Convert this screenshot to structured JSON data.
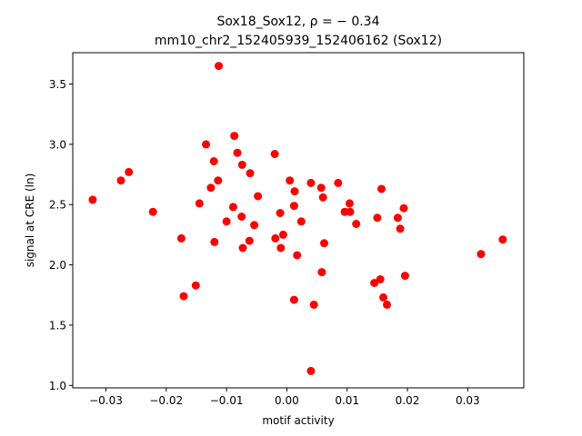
{
  "chart_data": {
    "type": "scatter",
    "title_line1": "Sox18_Sox12, ρ = − 0.34",
    "title_line2": "mm10_chr2_152405939_152406162 (Sox12)",
    "xlabel": "motif activity",
    "ylabel": "signal at CRE (ln)",
    "xlim": [
      -0.0355,
      0.0393
    ],
    "ylim": [
      0.98,
      3.76
    ],
    "xticks": [
      -0.03,
      -0.02,
      -0.01,
      0.0,
      0.01,
      0.02,
      0.03
    ],
    "xtick_labels": [
      "−0.03",
      "−0.02",
      "−0.01",
      "0.00",
      "0.01",
      "0.02",
      "0.03"
    ],
    "yticks": [
      1.0,
      1.5,
      2.0,
      2.5,
      3.0,
      3.5
    ],
    "ytick_labels": [
      "1.0",
      "1.5",
      "2.0",
      "2.5",
      "3.0",
      "3.5"
    ],
    "grid": false,
    "marker_color": "#ff0000",
    "points": [
      {
        "x": -0.0322,
        "y": 2.54
      },
      {
        "x": -0.0275,
        "y": 2.7
      },
      {
        "x": -0.0262,
        "y": 2.77
      },
      {
        "x": -0.0222,
        "y": 2.44
      },
      {
        "x": -0.0175,
        "y": 2.22
      },
      {
        "x": -0.0171,
        "y": 1.74
      },
      {
        "x": -0.0151,
        "y": 1.83
      },
      {
        "x": -0.0145,
        "y": 2.51
      },
      {
        "x": -0.0134,
        "y": 3.0
      },
      {
        "x": -0.0126,
        "y": 2.64
      },
      {
        "x": -0.0121,
        "y": 2.86
      },
      {
        "x": -0.012,
        "y": 2.19
      },
      {
        "x": -0.0114,
        "y": 2.7
      },
      {
        "x": -0.0113,
        "y": 3.65
      },
      {
        "x": -0.01,
        "y": 2.36
      },
      {
        "x": -0.0089,
        "y": 2.48
      },
      {
        "x": -0.0087,
        "y": 3.07
      },
      {
        "x": -0.0082,
        "y": 2.93
      },
      {
        "x": -0.0075,
        "y": 2.4
      },
      {
        "x": -0.0074,
        "y": 2.83
      },
      {
        "x": -0.0073,
        "y": 2.14
      },
      {
        "x": -0.0062,
        "y": 2.2
      },
      {
        "x": -0.0061,
        "y": 2.76
      },
      {
        "x": -0.0054,
        "y": 2.33
      },
      {
        "x": -0.0048,
        "y": 2.57
      },
      {
        "x": -0.002,
        "y": 2.92
      },
      {
        "x": -0.0019,
        "y": 2.22
      },
      {
        "x": -0.0011,
        "y": 2.43
      },
      {
        "x": -0.001,
        "y": 2.14
      },
      {
        "x": -0.0006,
        "y": 2.25
      },
      {
        "x": 0.0005,
        "y": 2.7
      },
      {
        "x": 0.0012,
        "y": 2.49
      },
      {
        "x": 0.0012,
        "y": 1.71
      },
      {
        "x": 0.0013,
        "y": 2.61
      },
      {
        "x": 0.0017,
        "y": 2.08
      },
      {
        "x": 0.0024,
        "y": 2.36
      },
      {
        "x": 0.004,
        "y": 2.68
      },
      {
        "x": 0.004,
        "y": 1.12
      },
      {
        "x": 0.0045,
        "y": 1.67
      },
      {
        "x": 0.0057,
        "y": 2.64
      },
      {
        "x": 0.0058,
        "y": 1.94
      },
      {
        "x": 0.006,
        "y": 2.56
      },
      {
        "x": 0.0062,
        "y": 2.18
      },
      {
        "x": 0.0085,
        "y": 2.68
      },
      {
        "x": 0.0096,
        "y": 2.44
      },
      {
        "x": 0.0104,
        "y": 2.51
      },
      {
        "x": 0.0105,
        "y": 2.44
      },
      {
        "x": 0.0115,
        "y": 2.34
      },
      {
        "x": 0.0145,
        "y": 1.85
      },
      {
        "x": 0.015,
        "y": 2.39
      },
      {
        "x": 0.0155,
        "y": 1.88
      },
      {
        "x": 0.0157,
        "y": 2.63
      },
      {
        "x": 0.016,
        "y": 1.73
      },
      {
        "x": 0.0166,
        "y": 1.67
      },
      {
        "x": 0.0184,
        "y": 2.39
      },
      {
        "x": 0.0188,
        "y": 2.3
      },
      {
        "x": 0.0194,
        "y": 2.47
      },
      {
        "x": 0.0196,
        "y": 1.91
      },
      {
        "x": 0.0322,
        "y": 2.09
      },
      {
        "x": 0.0358,
        "y": 2.21
      }
    ]
  }
}
